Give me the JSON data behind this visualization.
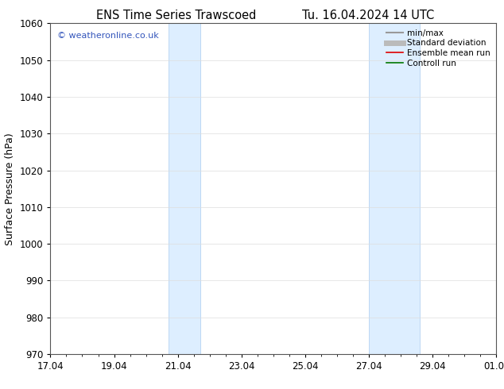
{
  "title_left": "ENS Time Series Trawscoed",
  "title_right": "Tu. 16.04.2024 14 UTC",
  "ylabel": "Surface Pressure (hPa)",
  "ylim": [
    970,
    1060
  ],
  "yticks": [
    970,
    980,
    990,
    1000,
    1010,
    1020,
    1030,
    1040,
    1050,
    1060
  ],
  "xlim": [
    0,
    14
  ],
  "xtick_labels": [
    "17.04",
    "19.04",
    "21.04",
    "23.04",
    "25.04",
    "27.04",
    "29.04",
    "01.05"
  ],
  "xtick_positions": [
    0,
    2,
    4,
    6,
    8,
    10,
    12,
    14
  ],
  "shaded_bands": [
    {
      "x_start": 3.7,
      "x_end": 4.7,
      "color": "#ddeeff"
    },
    {
      "x_start": 10.0,
      "x_end": 11.6,
      "color": "#ddeeff"
    }
  ],
  "band_edge_color": "#aaccee",
  "watermark": "© weatheronline.co.uk",
  "watermark_color": "#3355bb",
  "background_color": "#ffffff",
  "plot_bg_color": "#ffffff",
  "legend_items": [
    {
      "label": "min/max",
      "color": "#999999",
      "lw": 1.5,
      "style": "solid"
    },
    {
      "label": "Standard deviation",
      "color": "#bbbbbb",
      "lw": 5,
      "style": "solid"
    },
    {
      "label": "Ensemble mean run",
      "color": "#dd0000",
      "lw": 1.2,
      "style": "solid"
    },
    {
      "label": "Controll run",
      "color": "#007700",
      "lw": 1.2,
      "style": "solid"
    }
  ],
  "grid_color": "#dddddd",
  "grid_lw": 0.5,
  "tick_label_fontsize": 8.5,
  "axis_label_fontsize": 9,
  "title_fontsize": 10.5,
  "watermark_fontsize": 8
}
